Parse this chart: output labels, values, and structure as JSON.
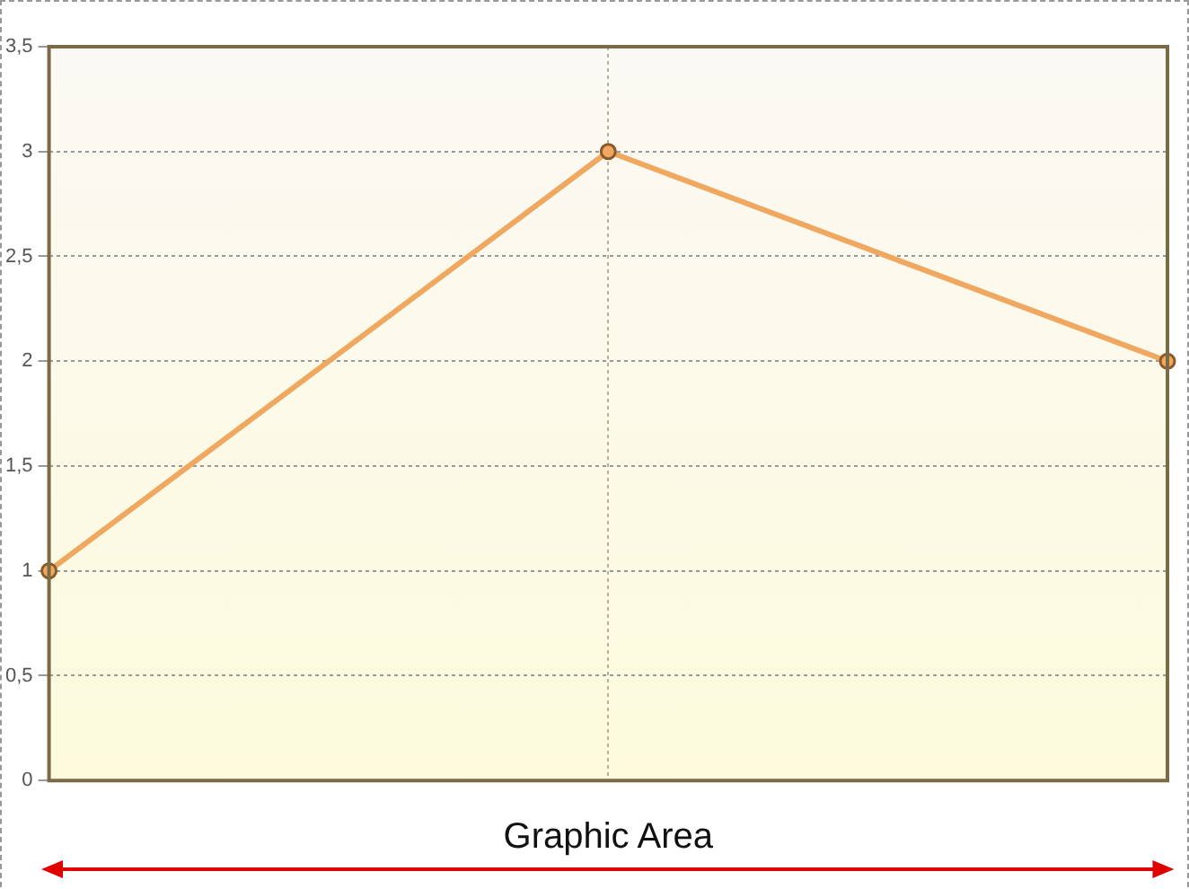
{
  "chart_data": {
    "type": "line",
    "categories": [
      null,
      null,
      null
    ],
    "series": [
      {
        "color": "#f0a860",
        "values": [
          1,
          3,
          2
        ]
      }
    ],
    "ylim": [
      0,
      3.5
    ],
    "yticks": [
      0,
      {
        "value": 0.5,
        "label": "0,5"
      },
      1,
      {
        "value": 1.5,
        "label": "1,5"
      },
      2,
      {
        "value": 2.5,
        "label": "2,5"
      },
      3,
      {
        "value": 3.5,
        "label": "3,5"
      }
    ],
    "grid": true,
    "marker": "circle",
    "line_style": "solid",
    "legend": false,
    "annotations": [
      "Graphic Area"
    ]
  }
}
